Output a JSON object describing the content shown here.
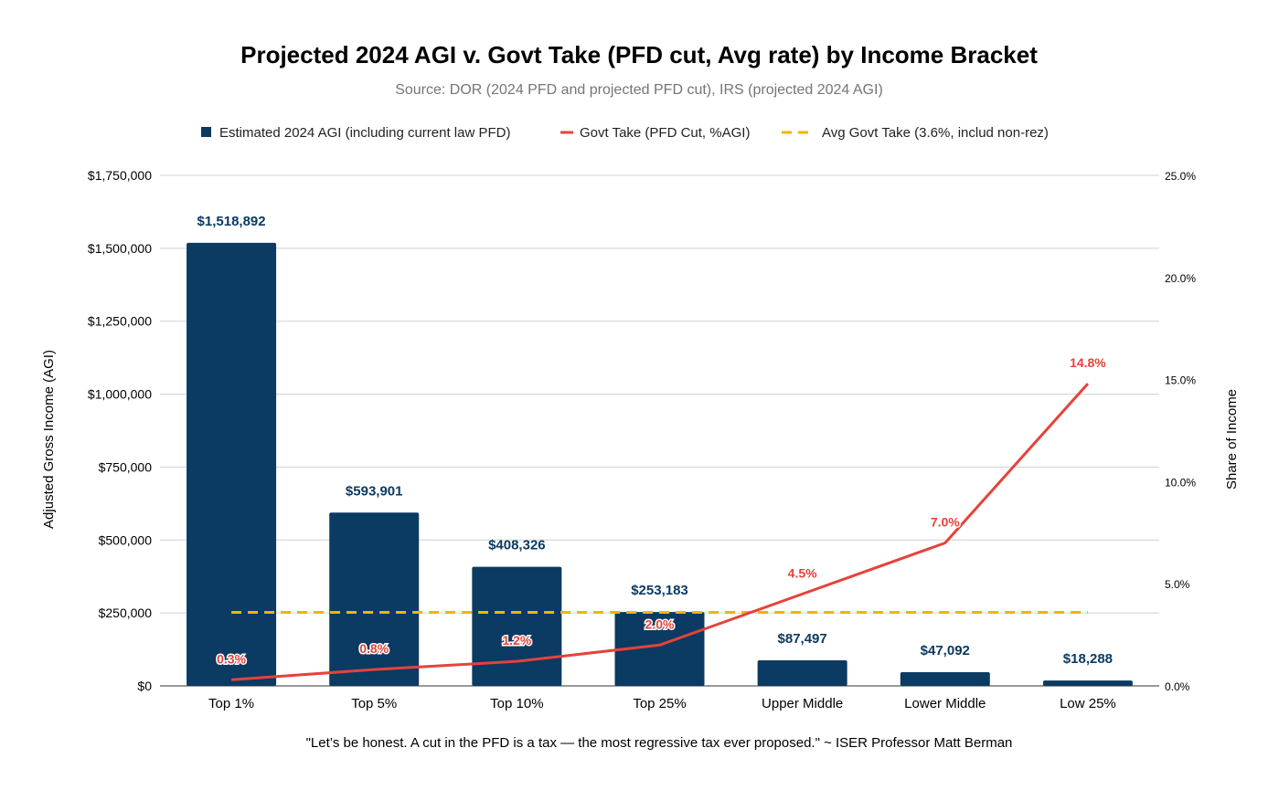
{
  "chart_data": {
    "type": "bar",
    "title": "Projected 2024 AGI v. Govt Take (PFD cut, Avg rate) by Income Bracket",
    "subtitle": "Source: DOR (2024 PFD and projected PFD cut), IRS (projected 2024 AGI)",
    "categories": [
      "Top 1%",
      "Top 5%",
      "Top 10%",
      "Top 25%",
      "Upper Middle",
      "Lower Middle",
      "Low 25%"
    ],
    "series": [
      {
        "name": "Estimated 2024 AGI (including current law PFD)",
        "type": "bar",
        "axis": "left",
        "color": "#0b3a63",
        "values": [
          1518892,
          593901,
          408326,
          253183,
          87497,
          47092,
          18288
        ],
        "labels": [
          "$1,518,892",
          "$593,901",
          "$408,326",
          "$253,183",
          "$87,497",
          "$47,092",
          "$18,288"
        ]
      },
      {
        "name": "Govt Take (PFD Cut, %AGI)",
        "type": "line",
        "axis": "right",
        "color": "#e4433a",
        "values": [
          0.3,
          0.8,
          1.2,
          2.0,
          4.5,
          7.0,
          14.8
        ],
        "labels": [
          "0.3%",
          "0.8%",
          "1.2%",
          "2.0%",
          "4.5%",
          "7.0%",
          "14.8%"
        ]
      },
      {
        "name": "Avg Govt Take (3.6%, includ non-rez)",
        "type": "line-dashed",
        "axis": "right",
        "color": "#f4b400",
        "values": [
          3.6,
          3.6,
          3.6,
          3.6,
          3.6,
          3.6,
          3.6
        ]
      }
    ],
    "ylabel": "Adjusted Gross Income (AGI)",
    "ylim": [
      0,
      1750000
    ],
    "yticks": [
      0,
      250000,
      500000,
      750000,
      1000000,
      1250000,
      1500000,
      1750000
    ],
    "ytick_labels": [
      "$0",
      "$250,000",
      "$500,000",
      "$750,000",
      "$1,000,000",
      "$1,250,000",
      "$1,500,000",
      "$1,750,000"
    ],
    "y2label": "Share of Income",
    "y2lim": [
      0,
      25
    ],
    "y2ticks": [
      0,
      5,
      10,
      15,
      20,
      25
    ],
    "y2tick_labels": [
      "0.0%",
      "5.0%",
      "10.0%",
      "15.0%",
      "20.0%",
      "25.0%"
    ],
    "grid": true,
    "legend_position": "top"
  },
  "footnote": "\"Let’s be honest. A cut in the PFD is a tax — the most regressive tax ever proposed.\" ~ ISER Professor Matt Berman"
}
